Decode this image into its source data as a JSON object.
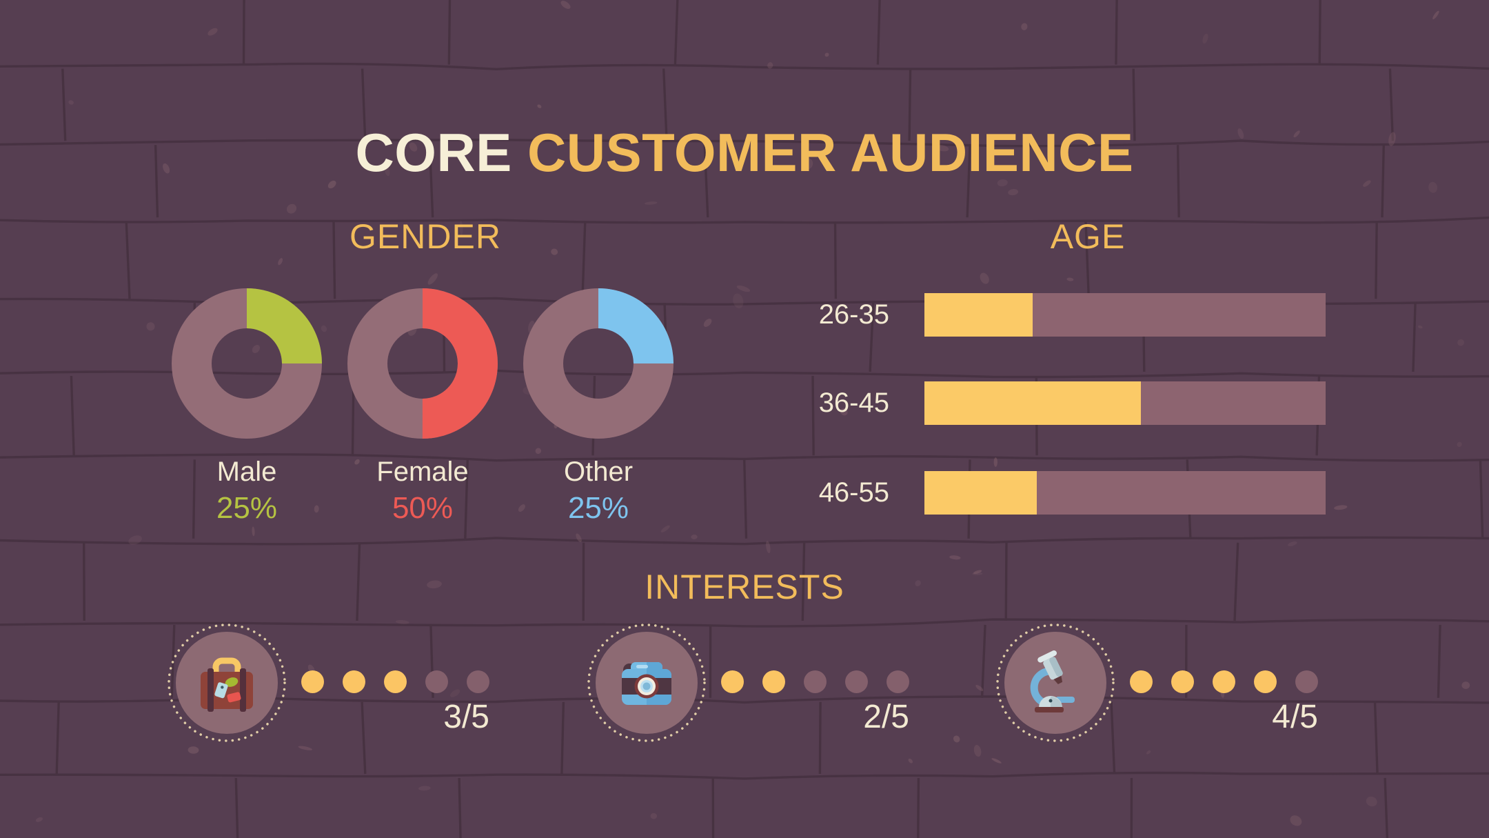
{
  "title": {
    "text_primary": "CORE",
    "text_secondary": "CUSTOMER AUDIENCE"
  },
  "gender": {
    "heading": "GENDER",
    "donuts": [
      {
        "label": "Male",
        "pct_label": "25%",
        "value": 25,
        "color": "#b5c342"
      },
      {
        "label": "Female",
        "pct_label": "50%",
        "value": 50,
        "color": "#ed5a55"
      },
      {
        "label": "Other",
        "pct_label": "25%",
        "value": 25,
        "color": "#7ec4ee"
      }
    ]
  },
  "age": {
    "heading": "AGE",
    "bars": [
      {
        "label": "26-35",
        "fill_pct": 27
      },
      {
        "label": "36-45",
        "fill_pct": 54
      },
      {
        "label": "46-55",
        "fill_pct": 28
      }
    ]
  },
  "interests": {
    "heading": "INTERESTS",
    "items": [
      {
        "icon": "suitcase-icon",
        "score_label": "3/5",
        "value": 3,
        "max": 5
      },
      {
        "icon": "camera-icon",
        "score_label": "2/5",
        "value": 2,
        "max": 5
      },
      {
        "icon": "microscope-icon",
        "score_label": "4/5",
        "value": 4,
        "max": 5
      }
    ]
  },
  "colors": {
    "background": "#563e51",
    "mortar_line": "#473241",
    "mauve": "#8d6470",
    "donut_ring": "#946d77",
    "accent_yellow": "#fbca67",
    "heading_yellow": "#f2bc5b",
    "cream_text": "#f3ead2",
    "male_green": "#b5c342",
    "female_red": "#ed5a55",
    "other_blue": "#7ec4ee"
  },
  "chart_data": [
    {
      "type": "pie",
      "subtype": "donut-set",
      "title": "GENDER",
      "items": [
        {
          "label": "Male",
          "value": 25,
          "unit": "%",
          "color": "#b5c342"
        },
        {
          "label": "Female",
          "value": 50,
          "unit": "%",
          "color": "#ed5a55"
        },
        {
          "label": "Other",
          "value": 25,
          "unit": "%",
          "color": "#7ec4ee"
        }
      ],
      "legend_position": "below-each-donut",
      "segment_start": "12 o'clock, clockwise"
    },
    {
      "type": "bar",
      "orientation": "horizontal",
      "title": "AGE",
      "categories": [
        "26-35",
        "36-45",
        "46-55"
      ],
      "values": [
        27,
        54,
        28
      ],
      "xlim": [
        0,
        100
      ],
      "value_labels_shown": false,
      "note": "yellow fill fraction of mauve track, estimated from pixels"
    },
    {
      "type": "bar",
      "subtype": "dot-rating",
      "title": "INTERESTS",
      "categories": [
        "suitcase-icon",
        "camera-icon",
        "microscope-icon"
      ],
      "values": [
        3,
        2,
        4
      ],
      "max": 5,
      "labels": [
        "3/5",
        "2/5",
        "4/5"
      ]
    }
  ]
}
